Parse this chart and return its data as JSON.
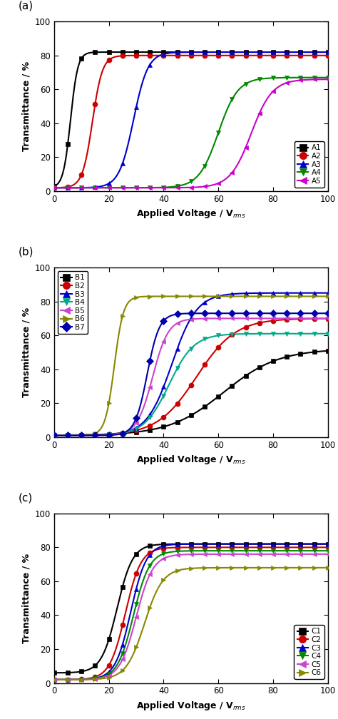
{
  "panel_a": {
    "title_label": "(a)",
    "legend_loc": "lower right",
    "series": [
      {
        "label": "A1",
        "color": "#000000",
        "marker": "s",
        "x0": 6.0,
        "k": 0.75,
        "ymax": 82,
        "ymin": 2
      },
      {
        "label": "A2",
        "color": "#cc0000",
        "marker": "o",
        "x0": 14.0,
        "k": 0.55,
        "ymax": 80,
        "ymin": 2
      },
      {
        "label": "A3",
        "color": "#0000cc",
        "marker": "^",
        "x0": 29.0,
        "k": 0.38,
        "ymax": 82,
        "ymin": 2
      },
      {
        "label": "A4",
        "color": "#008800",
        "marker": "v",
        "x0": 60.0,
        "k": 0.28,
        "ymax": 67,
        "ymin": 2
      },
      {
        "label": "A5",
        "color": "#cc00cc",
        "marker": "<",
        "x0": 72.0,
        "k": 0.26,
        "ymax": 66,
        "ymin": 2
      }
    ]
  },
  "panel_b": {
    "title_label": "(b)",
    "legend_loc": "upper left",
    "series": [
      {
        "label": "B1",
        "color": "#000000",
        "marker": "s",
        "x0": 62.0,
        "k": 0.1,
        "ymax": 52,
        "ymin": 1
      },
      {
        "label": "B2",
        "color": "#cc0000",
        "marker": "o",
        "x0": 52.0,
        "k": 0.14,
        "ymax": 70,
        "ymin": 1
      },
      {
        "label": "B3",
        "color": "#0000cc",
        "marker": "^",
        "x0": 43.0,
        "k": 0.22,
        "ymax": 85,
        "ymin": 1
      },
      {
        "label": "B4",
        "color": "#00aa88",
        "marker": "v",
        "x0": 42.0,
        "k": 0.22,
        "ymax": 61,
        "ymin": 1
      },
      {
        "label": "B5",
        "color": "#cc44cc",
        "marker": "<",
        "x0": 36.0,
        "k": 0.35,
        "ymax": 70,
        "ymin": 1
      },
      {
        "label": "B6",
        "color": "#888800",
        "marker": ">",
        "x0": 22.0,
        "k": 0.6,
        "ymax": 83,
        "ymin": 1
      },
      {
        "label": "B7",
        "color": "#0000aa",
        "marker": "D",
        "x0": 34.0,
        "k": 0.45,
        "ymax": 73,
        "ymin": 1
      }
    ]
  },
  "panel_c": {
    "title_label": "(c)",
    "legend_loc": "lower right",
    "series": [
      {
        "label": "C1",
        "color": "#000000",
        "marker": "s",
        "x0": 23.0,
        "k": 0.35,
        "ymax": 82,
        "ymin": 6
      },
      {
        "label": "C2",
        "color": "#cc0000",
        "marker": "o",
        "x0": 26.0,
        "k": 0.35,
        "ymax": 80,
        "ymin": 2
      },
      {
        "label": "C3",
        "color": "#0000cc",
        "marker": "^",
        "x0": 28.0,
        "k": 0.35,
        "ymax": 82,
        "ymin": 2
      },
      {
        "label": "C4",
        "color": "#008800",
        "marker": "v",
        "x0": 29.0,
        "k": 0.34,
        "ymax": 78,
        "ymin": 2
      },
      {
        "label": "C5",
        "color": "#cc44cc",
        "marker": "<",
        "x0": 30.0,
        "k": 0.33,
        "ymax": 76,
        "ymin": 2
      },
      {
        "label": "C6",
        "color": "#888800",
        "marker": ">",
        "x0": 33.0,
        "k": 0.3,
        "ymax": 68,
        "ymin": 2
      }
    ]
  },
  "xlabel_base": "Applied Voltage / V",
  "xlabel_sub": "rms",
  "ylabel": "Transmittance / %",
  "xlim": [
    0,
    100
  ],
  "ylim": [
    0,
    100
  ],
  "xticks": [
    0,
    20,
    40,
    60,
    80,
    100
  ],
  "yticks": [
    0,
    20,
    40,
    60,
    80,
    100
  ],
  "marker_size": 5,
  "line_width": 1.5,
  "legend_fontsize": 7.5,
  "axis_fontsize": 9,
  "tick_fontsize": 8.5,
  "n_markers": 20
}
